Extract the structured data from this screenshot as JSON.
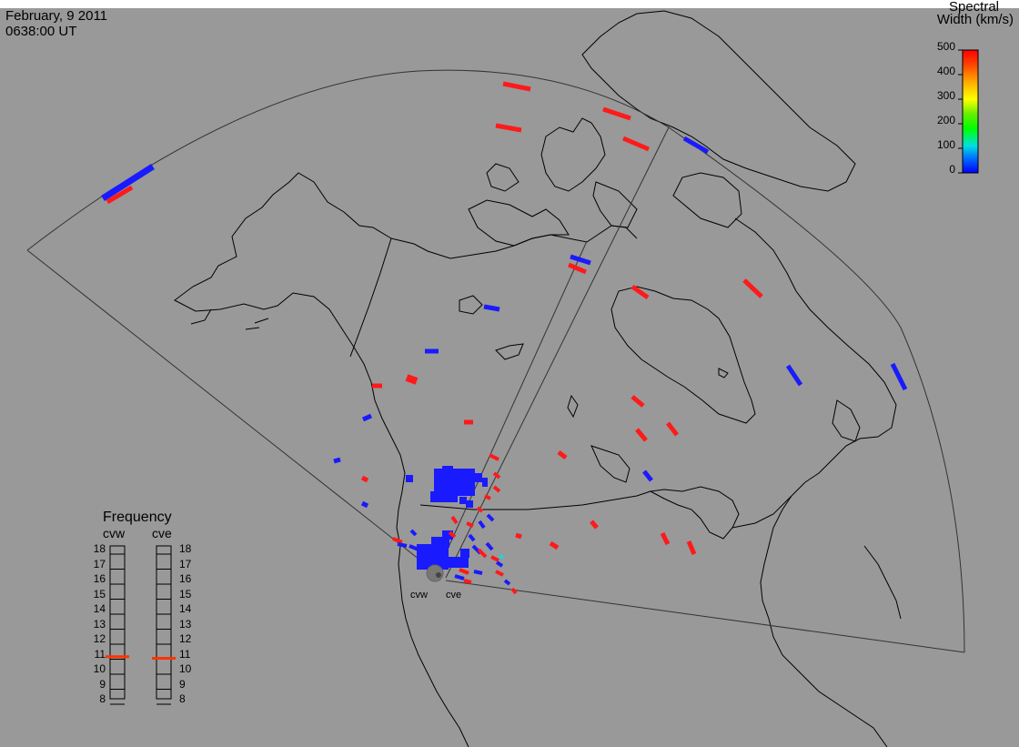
{
  "header": {
    "date": "February, 9 2011",
    "time": "0638:00 UT"
  },
  "colorbar": {
    "title_line1": "Spectral",
    "title_line2": "Width (km/s)",
    "ticks": [
      "500",
      "400",
      "300",
      "200",
      "100",
      "0"
    ],
    "colors": [
      "#0000ff",
      "#00a0ff",
      "#00ffcc",
      "#00ff00",
      "#88ee00",
      "#ffff00",
      "#ffaa00",
      "#ff5500",
      "#ff0000"
    ]
  },
  "frequency": {
    "title": "Frequency",
    "left_radar": "cvw",
    "right_radar": "cve",
    "ticks": [
      "18",
      "17",
      "16",
      "15",
      "14",
      "13",
      "12",
      "11",
      "10",
      "9",
      "8"
    ],
    "cvw_value": 10.8,
    "cve_value": 10.7,
    "marker_color": "#ff3300"
  },
  "radars": {
    "left": "cvw",
    "right": "cve"
  },
  "colors": {
    "background": "#999999",
    "low_width": "#1a1aff",
    "high_width": "#ff1a1a",
    "cyan": "#00e0e0"
  }
}
